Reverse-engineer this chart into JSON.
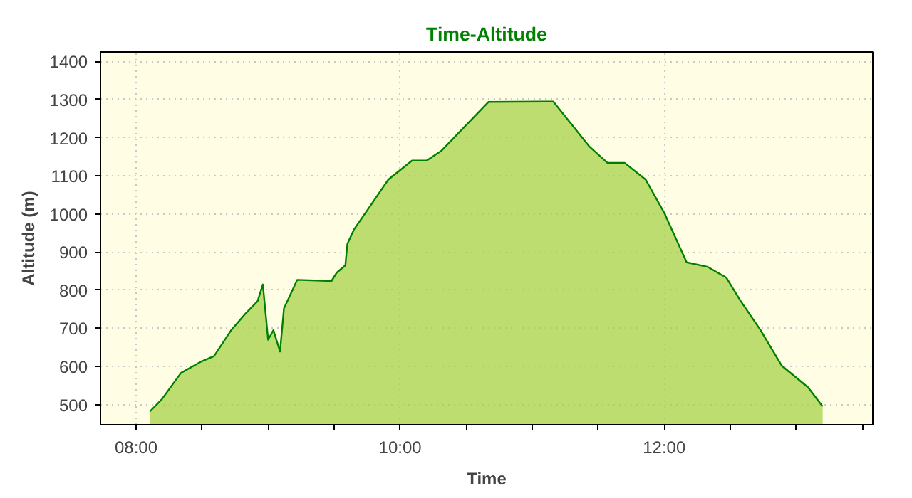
{
  "chart_data": {
    "type": "area",
    "title": "Time-Altitude",
    "xlabel": "Time",
    "ylabel": "Altitude (m)",
    "x": [
      8.105,
      8.195,
      8.34,
      8.5,
      8.59,
      8.72,
      8.83,
      8.92,
      8.96,
      9.0,
      9.04,
      9.09,
      9.12,
      9.22,
      9.48,
      9.52,
      9.585,
      9.6,
      9.65,
      9.75,
      9.91,
      10.09,
      10.2,
      10.31,
      10.67,
      11.16,
      11.43,
      11.57,
      11.7,
      11.86,
      12.0,
      12.17,
      12.33,
      12.47,
      12.58,
      12.73,
      12.89,
      13.09,
      13.2
    ],
    "series": [
      {
        "color": "#008000",
        "values": [
          482,
          514,
          583,
          614,
          627,
          695,
          739,
          771,
          815,
          670,
          695,
          639,
          752,
          827,
          824,
          846,
          865,
          921,
          959,
          1009,
          1090,
          1140,
          1140,
          1165,
          1294,
          1295,
          1178,
          1134,
          1134,
          1090,
          1003,
          873,
          861,
          833,
          771,
          695,
          602,
          545,
          495
        ]
      }
    ],
    "xlim": [
      7.73,
      13.58
    ],
    "ylim": [
      447,
      1425
    ],
    "xticks": [
      {
        "value": 8,
        "label": "08:00"
      },
      {
        "value": 8.5,
        "label": null
      },
      {
        "value": 9,
        "label": null
      },
      {
        "value": 9.5,
        "label": null
      },
      {
        "value": 10,
        "label": "10:00"
      },
      {
        "value": 10.5,
        "label": null
      },
      {
        "value": 11,
        "label": null
      },
      {
        "value": 11.5,
        "label": null
      },
      {
        "value": 12,
        "label": "12:00"
      },
      {
        "value": 12.5,
        "label": null
      },
      {
        "value": 13,
        "label": null
      },
      {
        "value": 13.5,
        "label": null
      }
    ],
    "yticks": [
      500,
      600,
      700,
      800,
      900,
      1000,
      1100,
      1200,
      1300,
      1400
    ],
    "grid": true,
    "marker": "none",
    "line_style": "solid"
  }
}
